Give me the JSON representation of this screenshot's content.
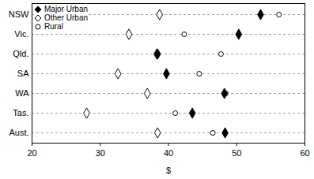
{
  "chart_data": {
    "type": "scatter",
    "orientation": "horizontal",
    "categories": [
      "NSW",
      "Vic.",
      "Qld.",
      "SA",
      "WA",
      "Tas.",
      "Aust."
    ],
    "series": [
      {
        "name": "Major Urban",
        "color": "#000000",
        "marker": "filled-diamond",
        "values": [
          53.5,
          50.3,
          38.4,
          39.7,
          48.2,
          43.5,
          48.3
        ]
      },
      {
        "name": "Other Urban",
        "color": "#000000",
        "marker": "open-diamond",
        "values": [
          38.7,
          34.2,
          38.3,
          32.6,
          36.9,
          28.0,
          38.4
        ]
      },
      {
        "name": "Rural",
        "color": "#000000",
        "marker": "open-circle",
        "values": [
          56.2,
          42.3,
          47.7,
          44.5,
          48.4,
          41.0,
          46.5
        ]
      }
    ],
    "xlabel": "$",
    "xlim": [
      20,
      60
    ],
    "xticks": [
      20,
      30,
      40,
      50,
      60
    ],
    "grid": true,
    "legend": "top-left"
  }
}
